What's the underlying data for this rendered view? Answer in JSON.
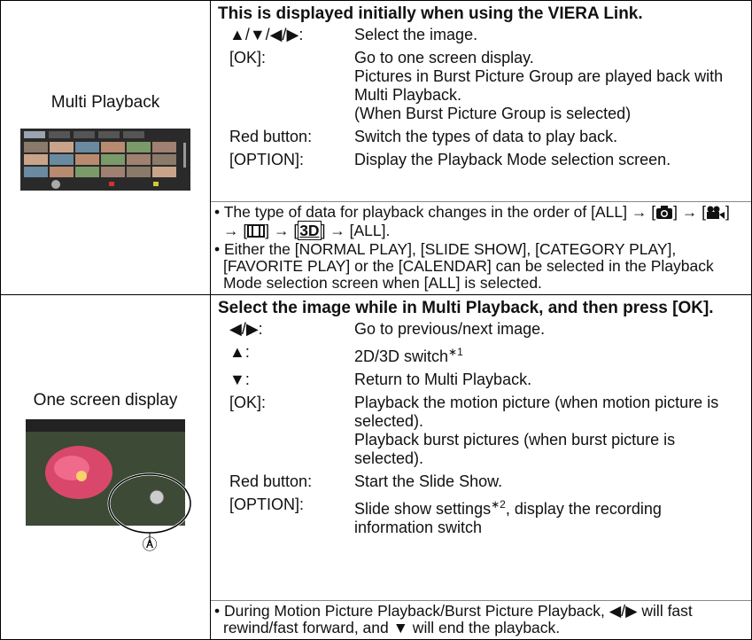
{
  "rows": [
    {
      "left": {
        "label": "Multi Playback"
      },
      "right": {
        "heading": "This is displayed initially when using the VIERA Link.",
        "items": [
          {
            "key": "▲/▼/◀/▶:",
            "desc": [
              "Select the image."
            ]
          },
          {
            "key": "[OK]:",
            "desc": [
              "Go to one screen display.",
              "Pictures in Burst Picture Group are played back with Multi Playback.",
              "(When Burst Picture Group is selected)"
            ]
          },
          {
            "key": "Red button:",
            "desc": [
              "Switch the types of data to play back."
            ]
          },
          {
            "key": "[OPTION]:",
            "desc": [
              "Display the Playback Mode selection screen."
            ]
          }
        ],
        "notes": [
          [
            "The type of data for playback changes in the order of [ALL] → [",
            "] → [",
            "] → [",
            "] → [",
            "3D",
            "] → [ALL]."
          ],
          "Either the [NORMAL PLAY], [SLIDE SHOW], [CATEGORY PLAY], [FAVORITE PLAY] or the [CALENDAR] can be selected in the Playback Mode selection screen when [ALL] is selected."
        ]
      }
    },
    {
      "left": {
        "label": "One screen display",
        "callout": "Ⓐ"
      },
      "right": {
        "heading": "Select the image while in Multi Playback, and then press [OK].",
        "items": [
          {
            "key": "◀/▶:",
            "desc": [
              "Go to previous/next image."
            ]
          },
          {
            "key": "▲:",
            "desc": [
              {
                "text": "2D/3D switch",
                "sup": "∗1"
              }
            ]
          },
          {
            "key": "▼:",
            "desc": [
              "Return to Multi Playback."
            ]
          },
          {
            "key": "[OK]:",
            "desc": [
              "Playback the motion picture (when motion picture is selected).",
              "Playback burst pictures (when burst picture is selected)."
            ]
          },
          {
            "key": "Red button:",
            "desc": [
              "Start the Slide Show."
            ]
          },
          {
            "key": "[OPTION]:",
            "desc": [
              {
                "text": "Slide show settings",
                "sup": "∗2",
                "after": ", display the recording information switch"
              }
            ]
          }
        ],
        "notes": [
          "During Motion Picture Playback/Burst Picture Playback, ◀/▶ will fast rewind/fast forward, and ▼ will end the playback."
        ]
      }
    }
  ]
}
